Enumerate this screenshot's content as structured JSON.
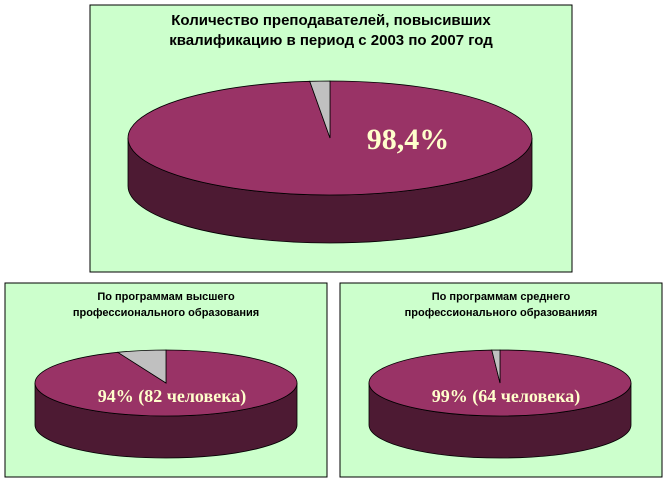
{
  "chart_data": [
    {
      "type": "pie",
      "title": "Количество преподавателей, повысивших\nквалификацию в период с 2003 по 2007 год",
      "values": [
        98.4,
        1.6
      ],
      "value_labels": [
        "98,4%",
        null
      ],
      "colors": [
        "#993366",
        "#c0c0c0"
      ]
    },
    {
      "type": "pie",
      "title": "По программам высшего\nпрофессионального образования",
      "values": [
        94,
        6
      ],
      "value_labels": [
        "94% (82 человека)",
        null
      ],
      "colors": [
        "#993366",
        "#c0c0c0"
      ]
    },
    {
      "type": "pie",
      "title": "По программам среднего\nпрофессионального образованияя",
      "values": [
        99,
        1
      ],
      "value_labels": [
        "99% (64 человека)",
        null
      ],
      "colors": [
        "#993366",
        "#c0c0c0"
      ]
    }
  ]
}
